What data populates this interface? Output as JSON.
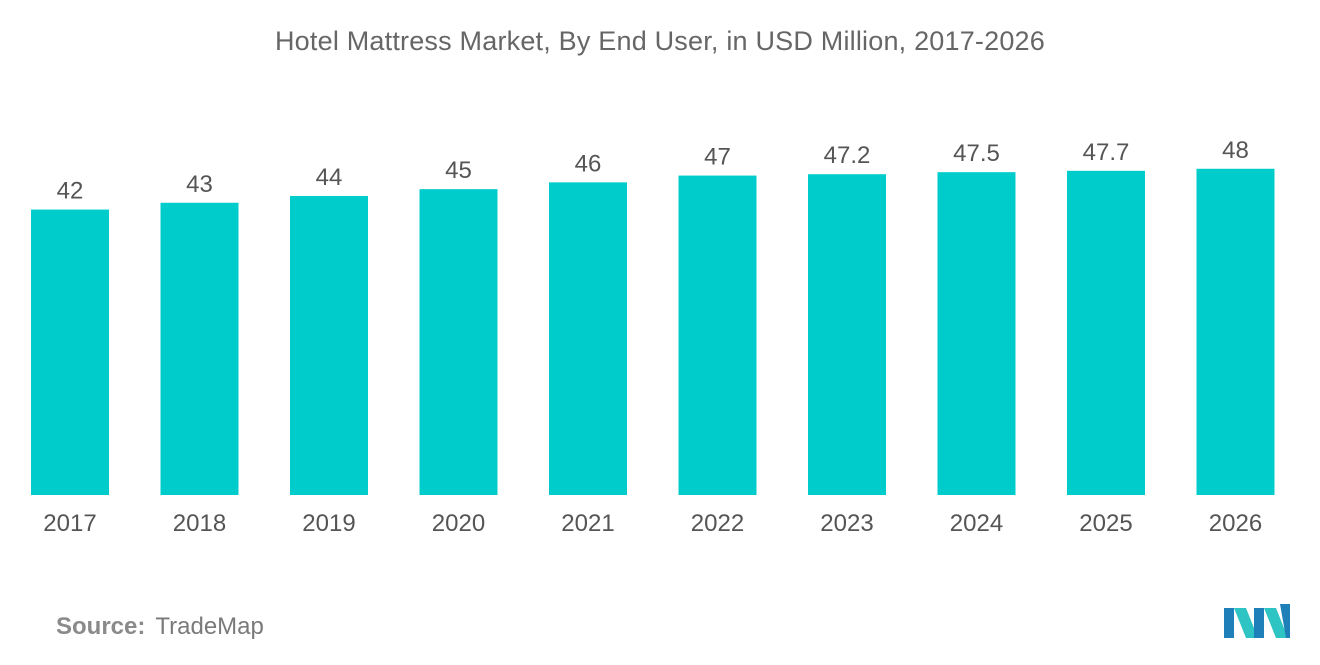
{
  "chart_data": {
    "type": "bar",
    "title": "Hotel Mattress Market, By End User, in USD Million, 2017-2026",
    "categories": [
      "2017",
      "2018",
      "2019",
      "2020",
      "2021",
      "2022",
      "2023",
      "2024",
      "2025",
      "2026"
    ],
    "values": [
      42,
      43,
      44,
      45,
      46,
      47,
      47.2,
      47.5,
      47.7,
      48
    ],
    "data_labels": [
      "42",
      "43",
      "44",
      "45",
      "46",
      "47",
      "47.2",
      "47.5",
      "47.7",
      "48"
    ],
    "xlabel": "",
    "ylabel": "",
    "ylim": [
      0,
      54
    ],
    "grid": false,
    "legend": "none",
    "bar_color": "#00cccc"
  },
  "source": {
    "label": "Source:",
    "value": "TradeMap"
  },
  "logo": {
    "icon": "mordor-intelligence-logo-icon",
    "colors": [
      "#1f7fb8",
      "#2fc4c4"
    ]
  }
}
